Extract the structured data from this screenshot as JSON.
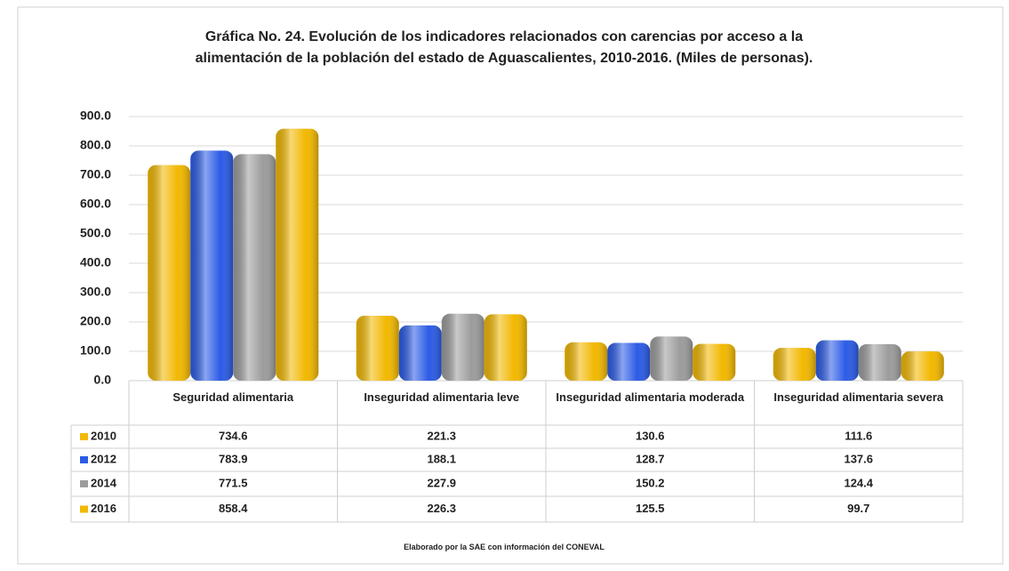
{
  "chart_data": {
    "type": "bar",
    "title": "Gráfica No. 24. Evolución de los indicadores relacionados con carencias por acceso a la alimentación de la población del estado de Aguascalientes, 2010-2016. (Miles de personas).",
    "categories": [
      "Seguridad alimentaria",
      "Inseguridad alimentaria leve",
      "Inseguridad alimentaria moderada",
      "Inseguridad alimentaria severa"
    ],
    "series": [
      {
        "name": "2010",
        "color": "#f2b800",
        "values": [
          734.6,
          221.3,
          130.6,
          111.6
        ]
      },
      {
        "name": "2012",
        "color": "#2b5be6",
        "values": [
          783.9,
          188.1,
          128.7,
          137.6
        ]
      },
      {
        "name": "2014",
        "color": "#9c9c9c",
        "values": [
          771.5,
          227.9,
          150.2,
          124.4
        ]
      },
      {
        "name": "2016",
        "color": "#f2b800",
        "values": [
          858.4,
          226.3,
          125.5,
          99.7
        ]
      }
    ],
    "ylim": [
      0,
      900
    ],
    "yticks": [
      {
        "value": 0,
        "label": "0.0"
      },
      {
        "value": 100,
        "label": "100.0"
      },
      {
        "value": 200,
        "label": "200.0"
      },
      {
        "value": 300,
        "label": "300.0"
      },
      {
        "value": 400,
        "label": "400.0"
      },
      {
        "value": 500,
        "label": "500.0"
      },
      {
        "value": 600,
        "label": "600.0"
      },
      {
        "value": 700,
        "label": "700.0"
      },
      {
        "value": 800,
        "label": "800.0"
      },
      {
        "value": 900,
        "label": "900.0"
      }
    ],
    "grid": true,
    "source": "Elaborado por la SAE con información del CONEVAL"
  }
}
